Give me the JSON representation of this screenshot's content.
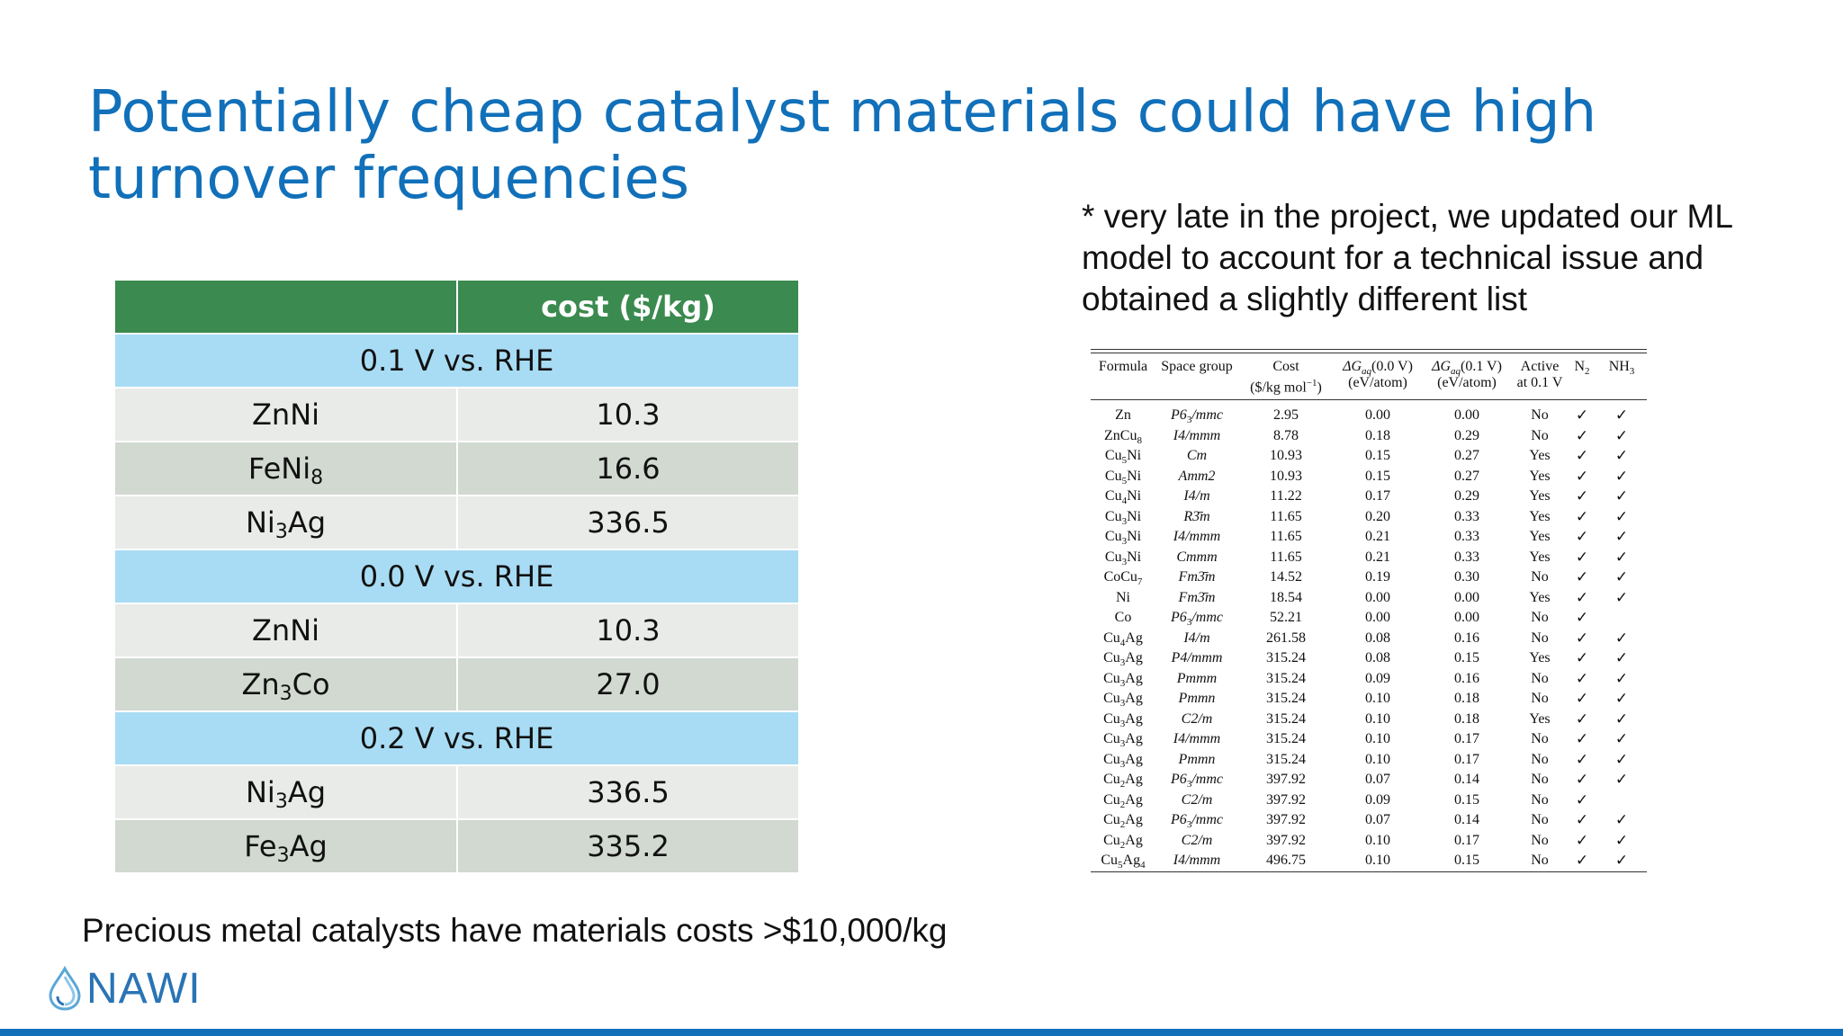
{
  "title": {
    "line1": "Potentially cheap catalyst materials could have high",
    "line2": "turnover frequencies"
  },
  "cost_table": {
    "header": {
      "col1": "",
      "col2": "cost ($/kg)"
    },
    "groups": [
      {
        "label": "0.1 V vs. RHE",
        "rows": [
          {
            "el1": "ZnNi",
            "sub1": "",
            "el2": "",
            "sub2": "",
            "cost": "10.3"
          },
          {
            "el1": "FeNi",
            "sub1": "8",
            "el2": "",
            "sub2": "",
            "cost": "16.6"
          },
          {
            "el1": "Ni",
            "sub1": "3",
            "el2": "Ag",
            "sub2": "",
            "cost": "336.5"
          }
        ]
      },
      {
        "label": "0.0 V vs. RHE",
        "rows": [
          {
            "el1": "ZnNi",
            "sub1": "",
            "el2": "",
            "sub2": "",
            "cost": "10.3"
          },
          {
            "el1": "Zn",
            "sub1": "3",
            "el2": "Co",
            "sub2": "",
            "cost": "27.0"
          }
        ]
      },
      {
        "label": "0.2 V vs. RHE",
        "rows": [
          {
            "el1": "Ni",
            "sub1": "3",
            "el2": "Ag",
            "sub2": "",
            "cost": "336.5"
          },
          {
            "el1": "Fe",
            "sub1": "3",
            "el2": "Ag",
            "sub2": "",
            "cost": "335.2"
          }
        ]
      }
    ]
  },
  "note": "* very late in the project, we updated our ML model to account for a technical issue and obtained a slightly different list",
  "paper_table": {
    "headers": {
      "formula": "Formula",
      "space_group": "Space group",
      "cost": "Cost",
      "cost_unit": "($/kg mol",
      "cost_unit_exp": "−1",
      "cost_unit_end": ")",
      "dg": "ΔG",
      "dg_sub": "aq",
      "dg00_cond": "(0.0 V)",
      "dg01_cond": "(0.1 V)",
      "dg_unit": "(eV/atom)",
      "active": "Active",
      "active_sub": "at 0.1 V",
      "n2": "N",
      "n2_sub": "2",
      "nh3": "NH",
      "nh3_sub": "3"
    },
    "check_mark": "✓",
    "rows": [
      {
        "f1": "Zn",
        "s1": "",
        "f2": "",
        "s2": "",
        "sg": "P6",
        "sgsub": "3",
        "sgend": "/mmc",
        "cost": "2.95",
        "g0": "0.00",
        "g1": "0.00",
        "active": "No",
        "n2": true,
        "nh3": true
      },
      {
        "f1": "ZnCu",
        "s1": "8",
        "f2": "",
        "s2": "",
        "sg": "I4/mmm",
        "sgsub": "",
        "sgend": "",
        "cost": "8.78",
        "g0": "0.18",
        "g1": "0.29",
        "active": "No",
        "n2": true,
        "nh3": true
      },
      {
        "f1": "Cu",
        "s1": "5",
        "f2": "Ni",
        "s2": "",
        "sg": "Cm",
        "sgsub": "",
        "sgend": "",
        "cost": "10.93",
        "g0": "0.15",
        "g1": "0.27",
        "active": "Yes",
        "n2": true,
        "nh3": true
      },
      {
        "f1": "Cu",
        "s1": "5",
        "f2": "Ni",
        "s2": "",
        "sg": "Amm2",
        "sgsub": "",
        "sgend": "",
        "cost": "10.93",
        "g0": "0.15",
        "g1": "0.27",
        "active": "Yes",
        "n2": true,
        "nh3": true
      },
      {
        "f1": "Cu",
        "s1": "4",
        "f2": "Ni",
        "s2": "",
        "sg": "I4/m",
        "sgsub": "",
        "sgend": "",
        "cost": "11.22",
        "g0": "0.17",
        "g1": "0.29",
        "active": "Yes",
        "n2": true,
        "nh3": true
      },
      {
        "f1": "Cu",
        "s1": "3",
        "f2": "Ni",
        "s2": "",
        "sg": "R3̄m",
        "sgsub": "",
        "sgend": "",
        "cost": "11.65",
        "g0": "0.20",
        "g1": "0.33",
        "active": "Yes",
        "n2": true,
        "nh3": true
      },
      {
        "f1": "Cu",
        "s1": "3",
        "f2": "Ni",
        "s2": "",
        "sg": "I4/mmm",
        "sgsub": "",
        "sgend": "",
        "cost": "11.65",
        "g0": "0.21",
        "g1": "0.33",
        "active": "Yes",
        "n2": true,
        "nh3": true
      },
      {
        "f1": "Cu",
        "s1": "3",
        "f2": "Ni",
        "s2": "",
        "sg": "Cmmm",
        "sgsub": "",
        "sgend": "",
        "cost": "11.65",
        "g0": "0.21",
        "g1": "0.33",
        "active": "Yes",
        "n2": true,
        "nh3": true
      },
      {
        "f1": "CoCu",
        "s1": "7",
        "f2": "",
        "s2": "",
        "sg": "Fm3̄m",
        "sgsub": "",
        "sgend": "",
        "cost": "14.52",
        "g0": "0.19",
        "g1": "0.30",
        "active": "No",
        "n2": true,
        "nh3": true
      },
      {
        "f1": "Ni",
        "s1": "",
        "f2": "",
        "s2": "",
        "sg": "Fm3̄m",
        "sgsub": "",
        "sgend": "",
        "cost": "18.54",
        "g0": "0.00",
        "g1": "0.00",
        "active": "Yes",
        "n2": true,
        "nh3": true
      },
      {
        "f1": "Co",
        "s1": "",
        "f2": "",
        "s2": "",
        "sg": "P6",
        "sgsub": "3",
        "sgend": "/mmc",
        "cost": "52.21",
        "g0": "0.00",
        "g1": "0.00",
        "active": "No",
        "n2": true,
        "nh3": false
      },
      {
        "f1": "Cu",
        "s1": "4",
        "f2": "Ag",
        "s2": "",
        "sg": "I4/m",
        "sgsub": "",
        "sgend": "",
        "cost": "261.58",
        "g0": "0.08",
        "g1": "0.16",
        "active": "No",
        "n2": true,
        "nh3": true
      },
      {
        "f1": "Cu",
        "s1": "3",
        "f2": "Ag",
        "s2": "",
        "sg": "P4/mmm",
        "sgsub": "",
        "sgend": "",
        "cost": "315.24",
        "g0": "0.08",
        "g1": "0.15",
        "active": "Yes",
        "n2": true,
        "nh3": true
      },
      {
        "f1": "Cu",
        "s1": "3",
        "f2": "Ag",
        "s2": "",
        "sg": "Pmmm",
        "sgsub": "",
        "sgend": "",
        "cost": "315.24",
        "g0": "0.09",
        "g1": "0.16",
        "active": "No",
        "n2": true,
        "nh3": true
      },
      {
        "f1": "Cu",
        "s1": "3",
        "f2": "Ag",
        "s2": "",
        "sg": "Pmmn",
        "sgsub": "",
        "sgend": "",
        "cost": "315.24",
        "g0": "0.10",
        "g1": "0.18",
        "active": "No",
        "n2": true,
        "nh3": true
      },
      {
        "f1": "Cu",
        "s1": "3",
        "f2": "Ag",
        "s2": "",
        "sg": "C2/m",
        "sgsub": "",
        "sgend": "",
        "cost": "315.24",
        "g0": "0.10",
        "g1": "0.18",
        "active": "Yes",
        "n2": true,
        "nh3": true
      },
      {
        "f1": "Cu",
        "s1": "3",
        "f2": "Ag",
        "s2": "",
        "sg": "I4/mmm",
        "sgsub": "",
        "sgend": "",
        "cost": "315.24",
        "g0": "0.10",
        "g1": "0.17",
        "active": "No",
        "n2": true,
        "nh3": true
      },
      {
        "f1": "Cu",
        "s1": "3",
        "f2": "Ag",
        "s2": "",
        "sg": "Pmmn",
        "sgsub": "",
        "sgend": "",
        "cost": "315.24",
        "g0": "0.10",
        "g1": "0.17",
        "active": "No",
        "n2": true,
        "nh3": true
      },
      {
        "f1": "Cu",
        "s1": "2",
        "f2": "Ag",
        "s2": "",
        "sg": "P6",
        "sgsub": "3",
        "sgend": "/mmc",
        "cost": "397.92",
        "g0": "0.07",
        "g1": "0.14",
        "active": "No",
        "n2": true,
        "nh3": true
      },
      {
        "f1": "Cu",
        "s1": "2",
        "f2": "Ag",
        "s2": "",
        "sg": "C2/m",
        "sgsub": "",
        "sgend": "",
        "cost": "397.92",
        "g0": "0.09",
        "g1": "0.15",
        "active": "No",
        "n2": true,
        "nh3": false
      },
      {
        "f1": "Cu",
        "s1": "2",
        "f2": "Ag",
        "s2": "",
        "sg": "P6",
        "sgsub": "3",
        "sgend": "/mmc",
        "cost": "397.92",
        "g0": "0.07",
        "g1": "0.14",
        "active": "No",
        "n2": true,
        "nh3": true
      },
      {
        "f1": "Cu",
        "s1": "2",
        "f2": "Ag",
        "s2": "",
        "sg": "C2/m",
        "sgsub": "",
        "sgend": "",
        "cost": "397.92",
        "g0": "0.10",
        "g1": "0.17",
        "active": "No",
        "n2": true,
        "nh3": true
      },
      {
        "f1": "Cu",
        "s1": "5",
        "f2": "Ag",
        "s2": "4",
        "sg": "I4/mmm",
        "sgsub": "",
        "sgend": "",
        "cost": "496.75",
        "g0": "0.10",
        "g1": "0.15",
        "active": "No",
        "n2": true,
        "nh3": true
      }
    ]
  },
  "footer_text": "Precious metal catalysts have materials costs >$10,000/kg",
  "logo": {
    "text": "NAWI",
    "color": "#2a74b5"
  },
  "colors": {
    "title": "#1170b9",
    "header_green": "#3b8a4f",
    "group_blue": "#a8dcf4",
    "row_light": "#e9ebe8",
    "row_dark": "#d1d9d0",
    "bottom_bar": "#1170b9"
  }
}
